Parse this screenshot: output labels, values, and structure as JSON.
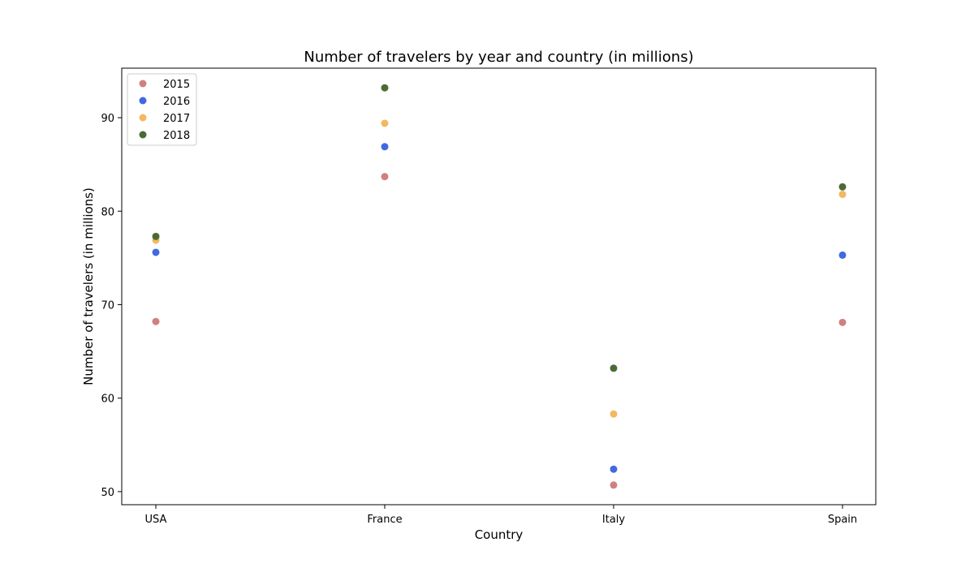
{
  "chart_data": {
    "type": "scatter",
    "title": "Number of travelers by year and country (in millions)",
    "xlabel": "Country",
    "ylabel": "Number of travelers (in millions)",
    "categories": [
      "USA",
      "France",
      "Italy",
      "Spain"
    ],
    "ylim": [
      48.6,
      95.3
    ],
    "yticks": [
      50,
      60,
      70,
      80,
      90
    ],
    "grid": false,
    "legend_position": "top-left",
    "series": [
      {
        "name": "2015",
        "color": "#d08080",
        "values": [
          68.2,
          83.7,
          50.7,
          68.1
        ]
      },
      {
        "name": "2016",
        "color": "#4169e1",
        "values": [
          75.6,
          86.9,
          52.4,
          75.3
        ]
      },
      {
        "name": "2017",
        "color": "#f4b860",
        "values": [
          76.9,
          89.4,
          58.3,
          81.8
        ]
      },
      {
        "name": "2018",
        "color": "#4b6b35",
        "values": [
          77.3,
          93.2,
          63.2,
          82.6
        ]
      }
    ]
  }
}
